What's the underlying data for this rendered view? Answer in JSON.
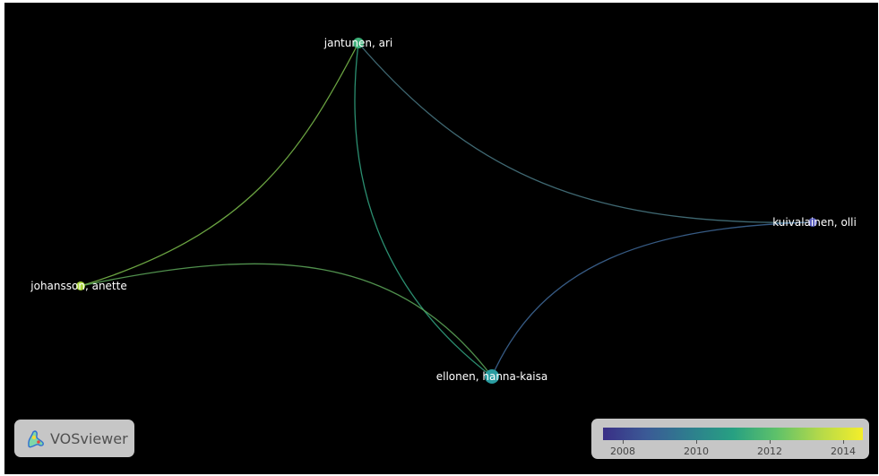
{
  "network": {
    "nodes": [
      {
        "id": "jantunen",
        "label": "jantunen, ari",
        "color": "#3fb07a"
      },
      {
        "id": "kuivalainen",
        "label": "kuivalainen, olli",
        "color": "#5b5fbf"
      },
      {
        "id": "johansson",
        "label": "johansson, anette",
        "color": "#a8d43c"
      },
      {
        "id": "ellonen",
        "label": "ellonen, hanna-kaisa",
        "color": "#2a9da1"
      }
    ],
    "links": [
      {
        "source": "jantunen",
        "target": "johansson",
        "color": "#7cbf4c"
      },
      {
        "source": "jantunen",
        "target": "ellonen",
        "color": "#33a784"
      },
      {
        "source": "jantunen",
        "target": "kuivalainen",
        "color": "#4a7a86"
      },
      {
        "source": "johansson",
        "target": "ellonen",
        "color": "#5ea95a"
      },
      {
        "source": "ellonen",
        "target": "kuivalainen",
        "color": "#3f6a9a"
      }
    ]
  },
  "logo": {
    "text": "VOSviewer"
  },
  "legend": {
    "labels": [
      "2008",
      "2010",
      "2012",
      "2014"
    ],
    "colors": [
      "#3a2f86",
      "#3b5a96",
      "#2e7e8e",
      "#27a082",
      "#5ec16a",
      "#b3d94a",
      "#f4ee2a"
    ]
  }
}
